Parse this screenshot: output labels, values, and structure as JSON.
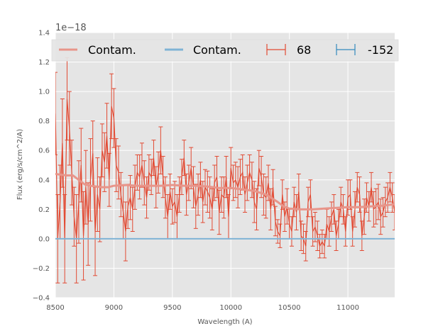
{
  "chart_data": {
    "type": "line",
    "xlabel": "Wavelength (A)",
    "ylabel": "Flux (erg/s/cm^2/A)",
    "offset_label": "1e−18",
    "xlim": [
      8500,
      11400
    ],
    "ylim": [
      -0.4,
      1.4
    ],
    "xticks": [
      8500,
      9000,
      9500,
      10000,
      10500,
      11000
    ],
    "xtick_labels": [
      "8500",
      "9000",
      "9500",
      "10000",
      "10500",
      "11000"
    ],
    "yticks": [
      -0.4,
      -0.2,
      0.0,
      0.2,
      0.4,
      0.6,
      0.8,
      1.0,
      1.2,
      1.4
    ],
    "ytick_labels": [
      "−0.4",
      "−0.2",
      "0.0",
      "0.2",
      "0.4",
      "0.6",
      "0.8",
      "1.0",
      "1.2",
      "1.4"
    ],
    "grid": true,
    "legend_position": "top",
    "legend": [
      {
        "label": "Contam.",
        "kind": "line",
        "color": "#e8958a"
      },
      {
        "label": "Contam.",
        "kind": "line",
        "color": "#7fb3d5"
      },
      {
        "label": "68",
        "kind": "errorbar",
        "color": "#e24a33"
      },
      {
        "label": "-152",
        "kind": "errorbar",
        "color": "#348abd"
      }
    ],
    "series": [
      {
        "name": "68",
        "kind": "errorbar",
        "color": "#e24a33",
        "x_start": 8500,
        "x_step": 20,
        "y": [
          0.85,
          0.0,
          0.25,
          0.65,
          0.0,
          0.95,
          0.75,
          0.45,
          0.15,
          0.0,
          0.25,
          0.5,
          0.02,
          0.35,
          0.1,
          0.4,
          0.58,
          0.05,
          0.3,
          0.2,
          0.6,
          0.52,
          0.7,
          0.4,
          0.9,
          0.82,
          0.5,
          0.45,
          0.3,
          0.18,
          0.05,
          0.22,
          0.28,
          0.2,
          0.35,
          0.45,
          0.42,
          0.5,
          0.38,
          0.28,
          0.45,
          0.42,
          0.55,
          0.35,
          0.45,
          0.6,
          0.42,
          0.28,
          0.15,
          0.32,
          0.22,
          0.25,
          0.15,
          0.3,
          0.42,
          0.55,
          0.3,
          0.38,
          0.48,
          0.35,
          0.22,
          0.3,
          0.4,
          0.25,
          0.35,
          0.32,
          0.28,
          0.2,
          0.38,
          0.42,
          0.18,
          0.3,
          0.28,
          0.42,
          0.15,
          0.48,
          0.38,
          0.4,
          0.35,
          0.42,
          0.45,
          0.3,
          0.38,
          0.45,
          0.4,
          0.25,
          0.2,
          0.48,
          0.42,
          0.3,
          0.28,
          0.38,
          0.2,
          0.35,
          0.12,
          0.05,
          0.02,
          0.3,
          0.15,
          0.22,
          0.1,
          0.05,
          0.25,
          0.18,
          0.32,
          0.02,
          0.0,
          -0.05,
          0.25,
          0.3,
          0.05,
          0.08,
          0.02,
          -0.05,
          -0.02,
          -0.05,
          0.1,
          0.05,
          0.15,
          0.2,
          0.02,
          0.1,
          0.25,
          0.2,
          0.05,
          0.28,
          0.3,
          0.05,
          0.2,
          0.35,
          0.3,
          0.02,
          0.15,
          0.28,
          0.22,
          0.35,
          0.2,
          0.22,
          0.25,
          0.15,
          0.18,
          0.25,
          0.28,
          0.35,
          0.28,
          0.18,
          0.27
        ],
        "err": [
          0.28,
          0.3,
          0.25,
          0.3,
          0.3,
          0.28,
          0.25,
          0.22,
          0.2,
          0.3,
          0.28,
          0.25,
          0.3,
          0.25,
          0.28,
          0.28,
          0.22,
          0.3,
          0.25,
          0.22,
          0.18,
          0.2,
          0.22,
          0.18,
          0.22,
          0.2,
          0.18,
          0.18,
          0.15,
          0.18,
          0.2,
          0.15,
          0.15,
          0.15,
          0.15,
          0.12,
          0.15,
          0.15,
          0.15,
          0.14,
          0.12,
          0.12,
          0.12,
          0.14,
          0.14,
          0.16,
          0.14,
          0.14,
          0.15,
          0.12,
          0.12,
          0.14,
          0.15,
          0.12,
          0.12,
          0.12,
          0.14,
          0.12,
          0.14,
          0.14,
          0.15,
          0.14,
          0.12,
          0.14,
          0.12,
          0.14,
          0.14,
          0.14,
          0.12,
          0.14,
          0.15,
          0.12,
          0.14,
          0.14,
          0.15,
          0.14,
          0.12,
          0.12,
          0.14,
          0.12,
          0.12,
          0.12,
          0.12,
          0.12,
          0.12,
          0.14,
          0.14,
          0.12,
          0.14,
          0.14,
          0.14,
          0.12,
          0.14,
          0.12,
          0.1,
          0.08,
          0.08,
          0.1,
          0.1,
          0.12,
          0.1,
          0.1,
          0.1,
          0.12,
          0.12,
          0.1,
          0.1,
          0.1,
          0.1,
          0.1,
          0.1,
          0.1,
          0.1,
          0.08,
          0.08,
          0.08,
          0.1,
          0.1,
          0.1,
          0.1,
          0.1,
          0.1,
          0.1,
          0.1,
          0.1,
          0.12,
          0.1,
          0.1,
          0.12,
          0.1,
          0.12,
          0.1,
          0.12,
          0.1,
          0.1,
          0.1,
          0.12,
          0.12,
          0.12,
          0.12,
          0.1,
          0.1,
          0.1,
          0.1,
          0.1,
          0.12,
          0.12
        ]
      },
      {
        "name": "-152",
        "kind": "errorbar",
        "color": "#348abd",
        "x": [
          8500,
          11400
        ],
        "y": [
          0.0,
          0.0
        ]
      },
      {
        "name": "Contam.",
        "kind": "line",
        "color": "#e8958a",
        "x": [
          8500,
          8600,
          8650,
          8700,
          8750,
          8800,
          8900,
          8950,
          9000,
          9100,
          9200,
          9300,
          9400,
          9500,
          9600,
          9700,
          9800,
          9900,
          10000,
          10100,
          10200,
          10300,
          10400,
          10450,
          10500,
          10600,
          10700,
          10800,
          10900,
          11000,
          11100,
          11200,
          11300,
          11400
        ],
        "y": [
          0.44,
          0.43,
          0.43,
          0.4,
          0.37,
          0.36,
          0.35,
          0.35,
          0.36,
          0.365,
          0.36,
          0.36,
          0.36,
          0.365,
          0.36,
          0.36,
          0.355,
          0.345,
          0.345,
          0.335,
          0.325,
          0.3,
          0.25,
          0.22,
          0.205,
          0.2,
          0.2,
          0.205,
          0.21,
          0.215,
          0.215,
          0.22,
          0.225,
          0.235
        ]
      },
      {
        "name": "Contam.",
        "kind": "line",
        "color": "#7fb3d5",
        "x": [
          8500,
          11400
        ],
        "y": [
          0.0,
          0.0
        ]
      }
    ]
  }
}
